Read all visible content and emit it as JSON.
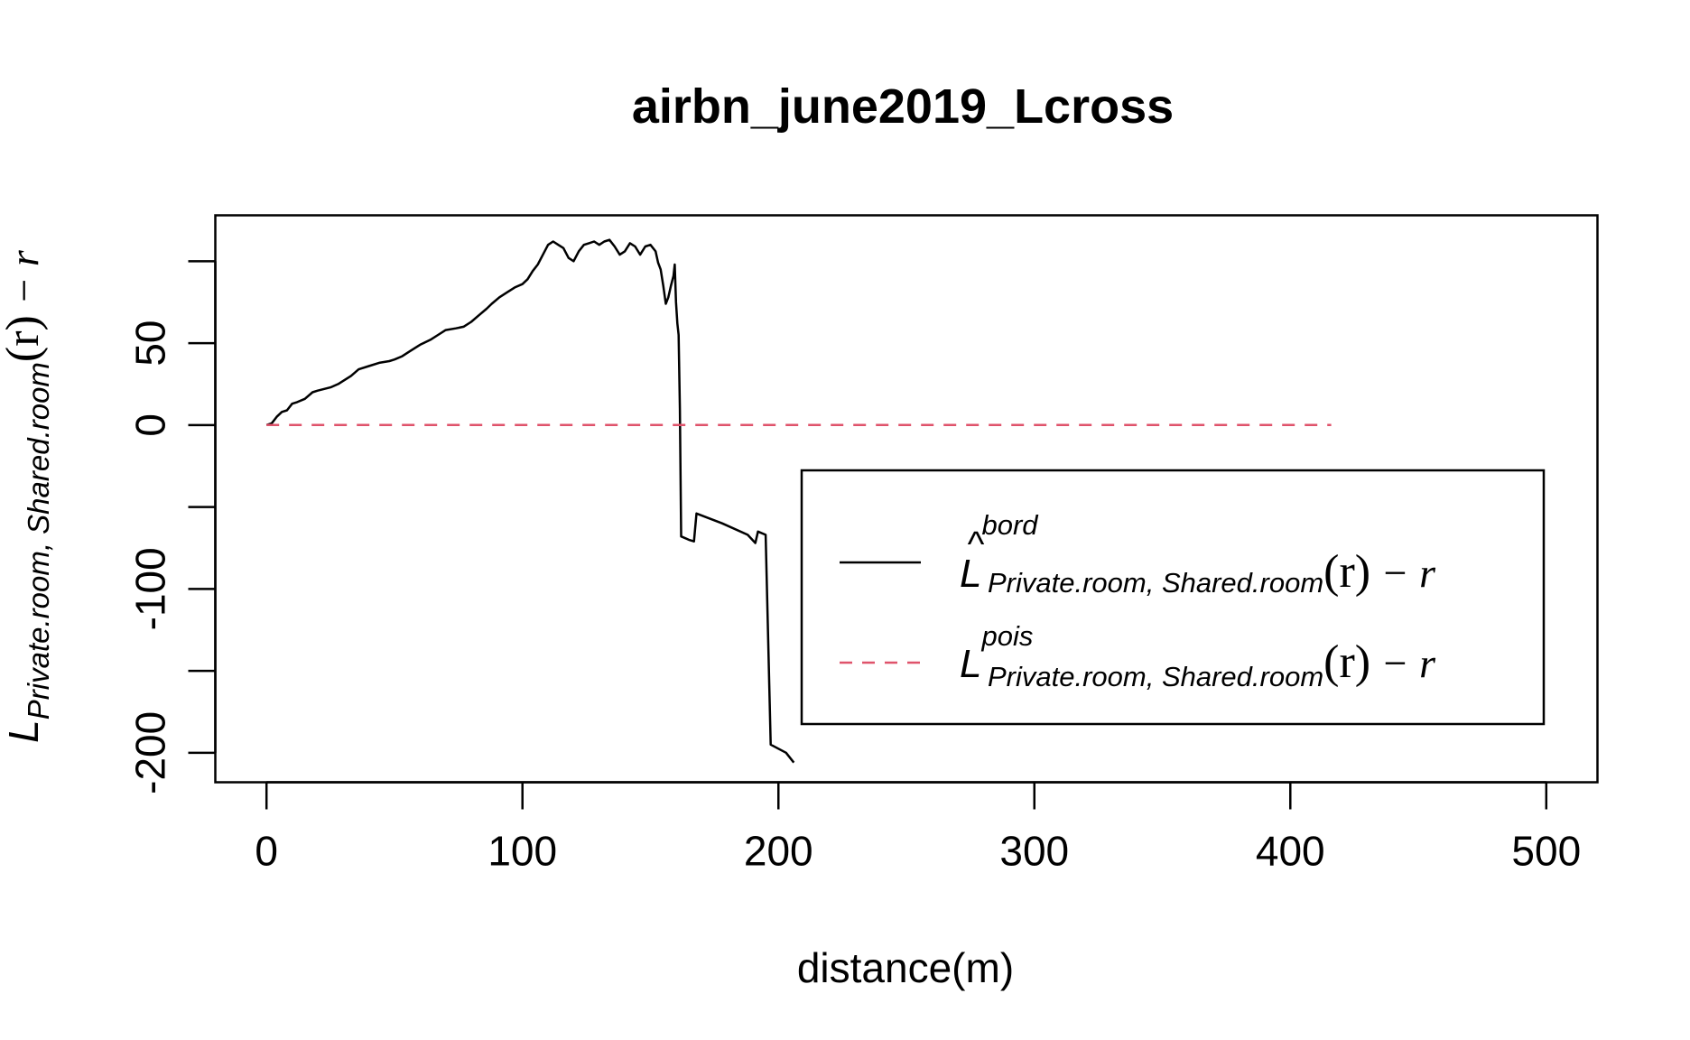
{
  "chart_data": {
    "type": "line",
    "title": "airbn_june2019_Lcross",
    "xlabel": "distance(m)",
    "ylabel": {
      "main": "L",
      "sub": "Private.room, Shared.room",
      "paren": "(r)",
      "tail": " − r"
    },
    "xlim": [
      -20,
      520
    ],
    "ylim": [
      -218,
      128
    ],
    "x_ticks": [
      0,
      100,
      200,
      300,
      400,
      500
    ],
    "y_ticks": [
      -200,
      -150,
      -100,
      -50,
      0,
      50,
      100
    ],
    "y_tick_labels": [
      "-200",
      "",
      "-100",
      "",
      "0",
      "50",
      ""
    ],
    "grid": false,
    "legend_position": "bottom-right",
    "colors": {
      "observed": "#000000",
      "theoretical": "#DF536B",
      "axes": "#000000"
    },
    "series": [
      {
        "key": "bord",
        "style": "solid",
        "legend": {
          "main": "L",
          "hat": "^",
          "sup": "bord",
          "sub": "Private.room, Shared.room",
          "paren": "(r)",
          "tail": " − r"
        },
        "points": [
          [
            0,
            0
          ],
          [
            2,
            1
          ],
          [
            4,
            5
          ],
          [
            6,
            8
          ],
          [
            8,
            9
          ],
          [
            10,
            13
          ],
          [
            12,
            14
          ],
          [
            15,
            16
          ],
          [
            18,
            20
          ],
          [
            20,
            21
          ],
          [
            25,
            23
          ],
          [
            28,
            25
          ],
          [
            30,
            27
          ],
          [
            33,
            30
          ],
          [
            36,
            34
          ],
          [
            40,
            36
          ],
          [
            44,
            38
          ],
          [
            48,
            39
          ],
          [
            50,
            40
          ],
          [
            53,
            42
          ],
          [
            56,
            45
          ],
          [
            60,
            49
          ],
          [
            64,
            52
          ],
          [
            67,
            55
          ],
          [
            70,
            58
          ],
          [
            74,
            59
          ],
          [
            77,
            60
          ],
          [
            80,
            63
          ],
          [
            83,
            67
          ],
          [
            86,
            71
          ],
          [
            88,
            74
          ],
          [
            91,
            78
          ],
          [
            94,
            81
          ],
          [
            97,
            84
          ],
          [
            100,
            86
          ],
          [
            102,
            89
          ],
          [
            104,
            94
          ],
          [
            106,
            98
          ],
          [
            108,
            104
          ],
          [
            110,
            110
          ],
          [
            112,
            112
          ],
          [
            114,
            110
          ],
          [
            116,
            108
          ],
          [
            118,
            102
          ],
          [
            120,
            100
          ],
          [
            122,
            106
          ],
          [
            124,
            110
          ],
          [
            126,
            111
          ],
          [
            128,
            112
          ],
          [
            130,
            110
          ],
          [
            132,
            112
          ],
          [
            134,
            113
          ],
          [
            136,
            109
          ],
          [
            138,
            104
          ],
          [
            140,
            106
          ],
          [
            142,
            111
          ],
          [
            144,
            109
          ],
          [
            146,
            104
          ],
          [
            148,
            109
          ],
          [
            150,
            110
          ],
          [
            152,
            106
          ],
          [
            153,
            99
          ],
          [
            154,
            95
          ],
          [
            155,
            85
          ],
          [
            156,
            74
          ],
          [
            157,
            78
          ],
          [
            158,
            85
          ],
          [
            159,
            91
          ],
          [
            159.5,
            98
          ],
          [
            160,
            75
          ],
          [
            160.5,
            62
          ],
          [
            161,
            55
          ],
          [
            161.5,
            10
          ],
          [
            162,
            -68
          ],
          [
            165,
            -70
          ],
          [
            167,
            -71
          ],
          [
            168,
            -54
          ],
          [
            178,
            -60
          ],
          [
            188,
            -67
          ],
          [
            191,
            -72
          ],
          [
            192,
            -65
          ],
          [
            195,
            -67
          ],
          [
            197,
            -195
          ],
          [
            203,
            -200
          ],
          [
            206,
            -206
          ]
        ]
      },
      {
        "key": "pois",
        "style": "dashed",
        "legend": {
          "main": "L",
          "hat": "",
          "sup": "pois",
          "sub": "Private.room, Shared.room",
          "paren": "(r)",
          "tail": " − r"
        },
        "points": [
          [
            0,
            0
          ],
          [
            416,
            0
          ]
        ]
      }
    ]
  }
}
